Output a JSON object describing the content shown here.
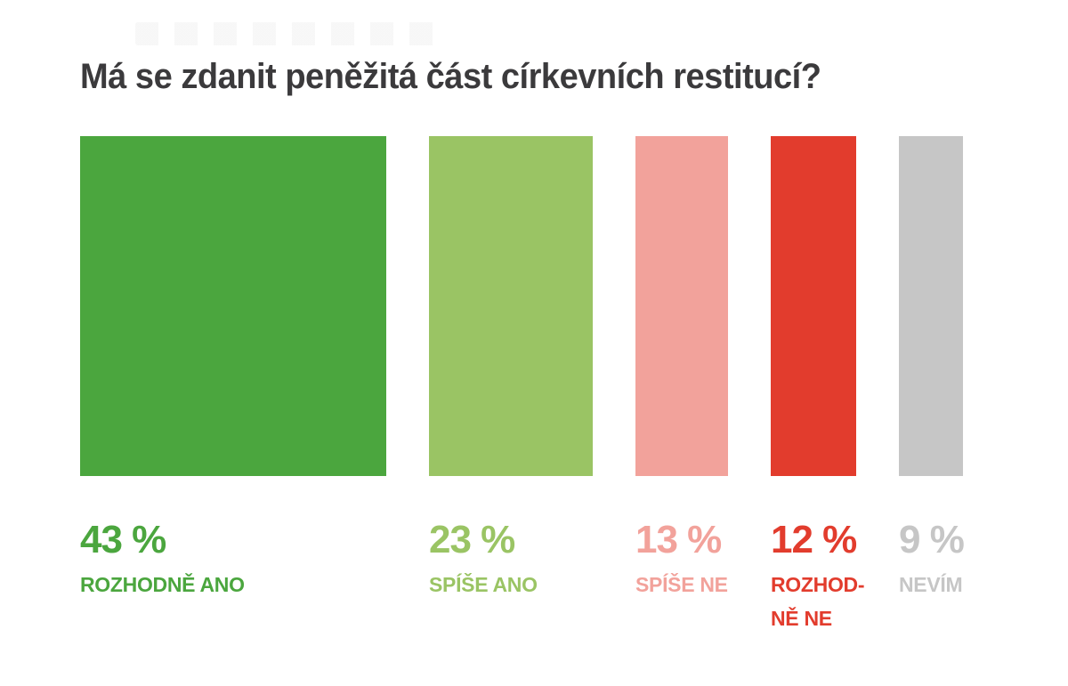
{
  "page": {
    "background": "#ffffff"
  },
  "header": {
    "title": "Má se zdanit peněžitá část církevních restitucí?",
    "title_color": "#3b3a3c"
  },
  "chart_data": {
    "type": "bar",
    "title": "Má se zdanit peněžitá část církevních restitucí?",
    "orientation": "columns-equal-height-width-proportional-to-value",
    "categories": [
      "ROZHODNĚ ANO",
      "SPÍŠE ANO",
      "SPÍŠE NE",
      "ROZHODNĚ NE",
      "NEVÍM"
    ],
    "values": [
      43,
      23,
      13,
      12,
      9
    ],
    "unit": "%",
    "value_labels": [
      "43 %",
      "23 %",
      "13 %",
      "12 %",
      "9 %"
    ],
    "category_display_lines": [
      "ROZHODNĚ ANO",
      "SPÍŠE ANO",
      "SPÍŠE NE",
      "ROZHOD-\nNĚ NE",
      "NEVÍM"
    ],
    "category_ids": [
      "rozhodne-ano",
      "spise-ano",
      "spise-ne",
      "rozhodne-ne",
      "nevim"
    ],
    "colors": [
      "#4ba63e",
      "#9ac464",
      "#f2a29b",
      "#e23c2d",
      "#c6c6c6"
    ],
    "xlabel": "",
    "ylabel": "",
    "legend": "none",
    "grid": false,
    "axes_shown": false
  }
}
